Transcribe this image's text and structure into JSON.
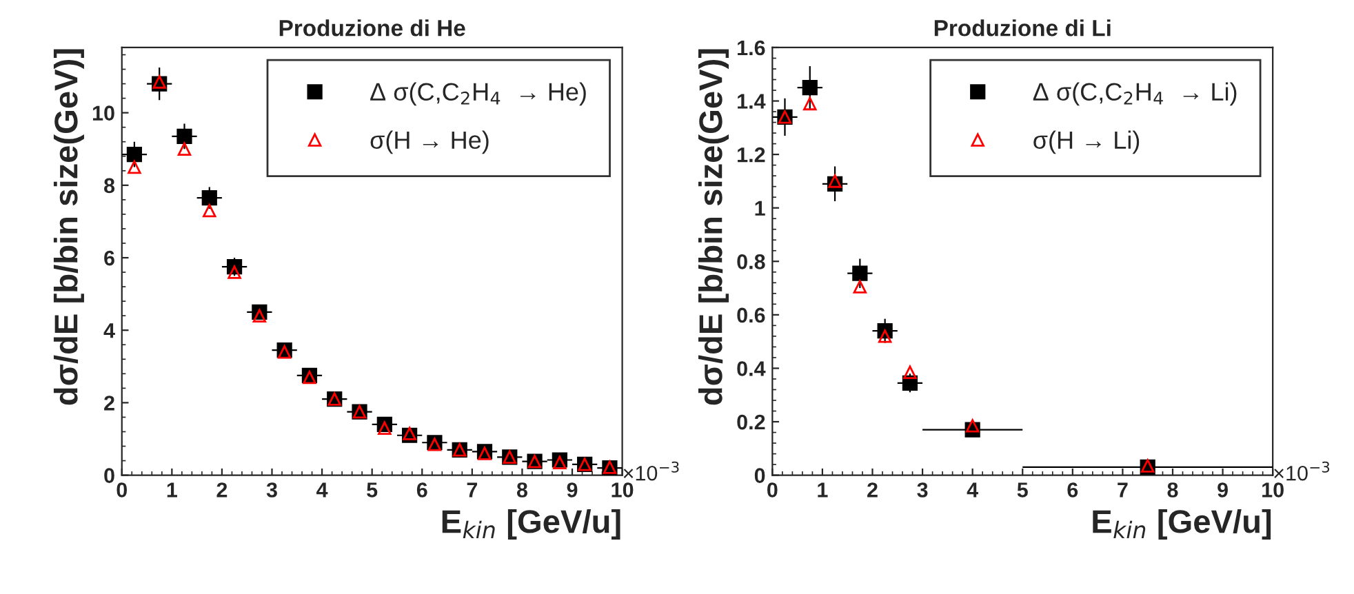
{
  "chart_data": [
    {
      "type": "scatter",
      "title": "Produzione di He",
      "xlabel": "E$_{kin}$ [GeV/u]",
      "ylabel": "dσ/dE [b/bin size(GeV)]",
      "xlim": [
        0,
        10
      ],
      "xticks": [
        0,
        1,
        2,
        3,
        4,
        5,
        6,
        7,
        8,
        9,
        10
      ],
      "ylim": [
        0,
        11.8
      ],
      "yticks": [
        0,
        2,
        4,
        6,
        8,
        10
      ],
      "grid": false,
      "legend": "top right",
      "annotations": [
        "×10$^{−3}$"
      ],
      "series": [
        {
          "name": "Δ σ(C,C$_{2}$H$_{4}$  → He)",
          "color": "#000000",
          "marker": "square",
          "x": [
            0.25,
            0.75,
            1.25,
            1.75,
            2.25,
            2.75,
            3.25,
            3.75,
            4.25,
            4.75,
            5.25,
            5.75,
            6.25,
            6.75,
            7.25,
            7.75,
            8.25,
            8.75,
            9.25,
            9.75
          ],
          "values": [
            8.85,
            10.8,
            9.35,
            7.65,
            5.75,
            4.5,
            3.45,
            2.75,
            2.1,
            1.75,
            1.4,
            1.1,
            0.9,
            0.7,
            0.65,
            0.5,
            0.38,
            0.42,
            0.3,
            0.2
          ],
          "errors": [
            0.35,
            0.45,
            0.35,
            0.3,
            0.25,
            0.2,
            0.15,
            0.15,
            0.1,
            0.1,
            0.1,
            0.1,
            0.1,
            0.08,
            0.08,
            0.08,
            0.08,
            0.08,
            0.08,
            0.08
          ],
          "xerrors": [
            0.25,
            0.25,
            0.25,
            0.25,
            0.25,
            0.25,
            0.25,
            0.25,
            0.25,
            0.25,
            0.25,
            0.25,
            0.25,
            0.25,
            0.25,
            0.25,
            0.25,
            0.25,
            0.25,
            0.25
          ]
        },
        {
          "name": "σ(H → He)",
          "color": "#ff0000",
          "marker": "triangle",
          "x": [
            0.25,
            0.75,
            1.25,
            1.75,
            2.25,
            2.75,
            3.25,
            3.75,
            4.25,
            4.75,
            5.25,
            5.75,
            6.25,
            6.75,
            7.25,
            7.75,
            8.25,
            8.75,
            9.25,
            9.75
          ],
          "values": [
            8.5,
            10.85,
            9.0,
            7.3,
            5.6,
            4.4,
            3.4,
            2.7,
            2.1,
            1.75,
            1.3,
            1.15,
            0.85,
            0.7,
            0.6,
            0.5,
            0.38,
            0.35,
            0.3,
            0.22
          ]
        }
      ]
    },
    {
      "type": "scatter",
      "title": "Produzione di Li",
      "xlabel": "E$_{kin}$ [GeV/u]",
      "ylabel": "dσ/dE [b/bin size(GeV)]",
      "xlim": [
        0,
        10
      ],
      "xticks": [
        0,
        1,
        2,
        3,
        4,
        5,
        6,
        7,
        8,
        9,
        10
      ],
      "ylim": [
        0,
        1.6
      ],
      "yticks": [
        0,
        0.2,
        0.4,
        0.6,
        0.8,
        1,
        1.2,
        1.4,
        1.6
      ],
      "grid": false,
      "legend": "top right",
      "annotations": [
        "×10$^{−3}$"
      ],
      "series": [
        {
          "name": "Δ σ(C,C$_{2}$H$_{4}$  → Li)",
          "color": "#000000",
          "marker": "square",
          "x": [
            0.25,
            0.75,
            1.25,
            1.75,
            2.25,
            2.75,
            4,
            7.5
          ],
          "values": [
            1.34,
            1.45,
            1.09,
            0.755,
            0.54,
            0.345,
            0.17,
            0.03
          ],
          "errors": [
            0.07,
            0.08,
            0.065,
            0.055,
            0.045,
            0.035,
            0.01,
            0.005
          ],
          "xerrors": [
            0.25,
            0.25,
            0.25,
            0.25,
            0.25,
            0.25,
            1,
            2.5
          ]
        },
        {
          "name": "σ(H → Li)",
          "color": "#ff0000",
          "marker": "triangle",
          "x": [
            0.25,
            0.75,
            1.25,
            1.75,
            2.25,
            2.75,
            4,
            7.5
          ],
          "values": [
            1.34,
            1.39,
            1.1,
            0.705,
            0.52,
            0.385,
            0.185,
            0.035
          ]
        }
      ]
    }
  ]
}
